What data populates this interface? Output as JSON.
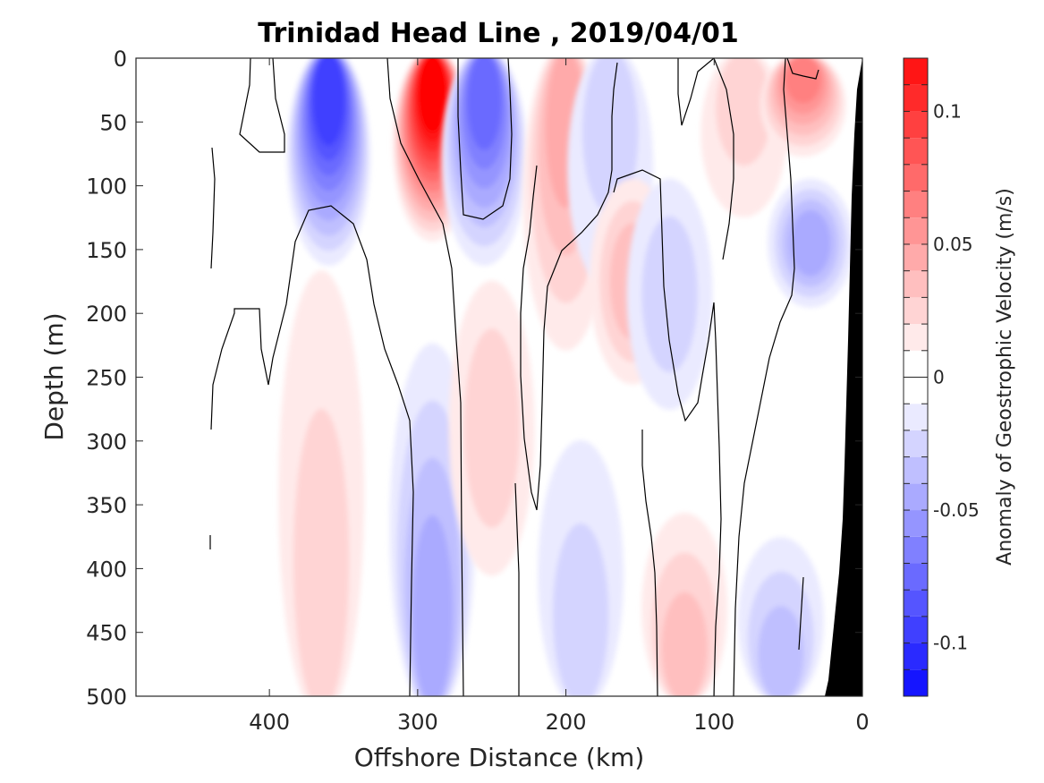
{
  "chart_data": {
    "type": "heatmap",
    "title": "Trinidad Head Line , 2019/04/01",
    "xlabel": "Offshore Distance (km)",
    "ylabel": "Depth (m)",
    "xlim": [
      490,
      0
    ],
    "ylim": [
      0,
      500
    ],
    "x_reversed": true,
    "y_reversed": true,
    "x_ticks": [
      400,
      300,
      200,
      100,
      0
    ],
    "x_tick_labels": [
      "400",
      "300",
      "200",
      "100",
      "0"
    ],
    "y_ticks": [
      0,
      50,
      100,
      150,
      200,
      250,
      300,
      350,
      400,
      450,
      500
    ],
    "y_tick_labels": [
      "0",
      "50",
      "100",
      "150",
      "200",
      "250",
      "300",
      "350",
      "400",
      "450",
      "500"
    ],
    "colorbar": {
      "label": "Anomaly of Geostrophic Velocity (m/s)",
      "range": [
        -0.12,
        0.12
      ],
      "ticks": [
        0.1,
        0.05,
        0,
        -0.05,
        -0.1
      ],
      "tick_labels": [
        "0.1",
        "0.05",
        "0",
        "-0.05",
        "-0.1"
      ],
      "levels": [
        -0.12,
        -0.11,
        -0.1,
        -0.09,
        -0.08,
        -0.07,
        -0.06,
        -0.05,
        -0.04,
        -0.03,
        -0.02,
        -0.01,
        0.01,
        0.02,
        0.03,
        0.04,
        0.05,
        0.06,
        0.07,
        0.08,
        0.09,
        0.1,
        0.11,
        0.12
      ]
    },
    "anomaly_cores": [
      {
        "x_km": 360,
        "depth_top": 0,
        "depth_bottom": 160,
        "peak": -0.09
      },
      {
        "x_km": 290,
        "depth_top": 0,
        "depth_bottom": 140,
        "peak": 0.12
      },
      {
        "x_km": 255,
        "depth_top": 0,
        "depth_bottom": 160,
        "peak": -0.07
      },
      {
        "x_km": 365,
        "depth_top": 160,
        "depth_bottom": 500,
        "peak": 0.02
      },
      {
        "x_km": 290,
        "depth_top": 220,
        "depth_bottom": 500,
        "peak": -0.04
      },
      {
        "x_km": 250,
        "depth_top": 180,
        "depth_bottom": 400,
        "peak": 0.02
      },
      {
        "x_km": 200,
        "depth_top": 0,
        "depth_bottom": 230,
        "peak": 0.04
      },
      {
        "x_km": 190,
        "depth_top": 300,
        "depth_bottom": 500,
        "peak": -0.02
      },
      {
        "x_km": 170,
        "depth_top": 0,
        "depth_bottom": 180,
        "peak": -0.02
      },
      {
        "x_km": 155,
        "depth_top": 100,
        "depth_bottom": 250,
        "peak": 0.03
      },
      {
        "x_km": 130,
        "depth_top": 100,
        "depth_bottom": 270,
        "peak": -0.02
      },
      {
        "x_km": 120,
        "depth_top": 360,
        "depth_bottom": 500,
        "peak": 0.03
      },
      {
        "x_km": 80,
        "depth_top": 0,
        "depth_bottom": 120,
        "peak": 0.02
      },
      {
        "x_km": 55,
        "depth_top": 380,
        "depth_bottom": 500,
        "peak": -0.03
      },
      {
        "x_km": 40,
        "depth_top": 0,
        "depth_bottom": 70,
        "peak": 0.06
      },
      {
        "x_km": 35,
        "depth_top": 100,
        "depth_bottom": 190,
        "peak": -0.04
      }
    ],
    "bathymetry_color": "#000000",
    "positive_color": "#ff0000",
    "negative_color": "#0000ff"
  }
}
